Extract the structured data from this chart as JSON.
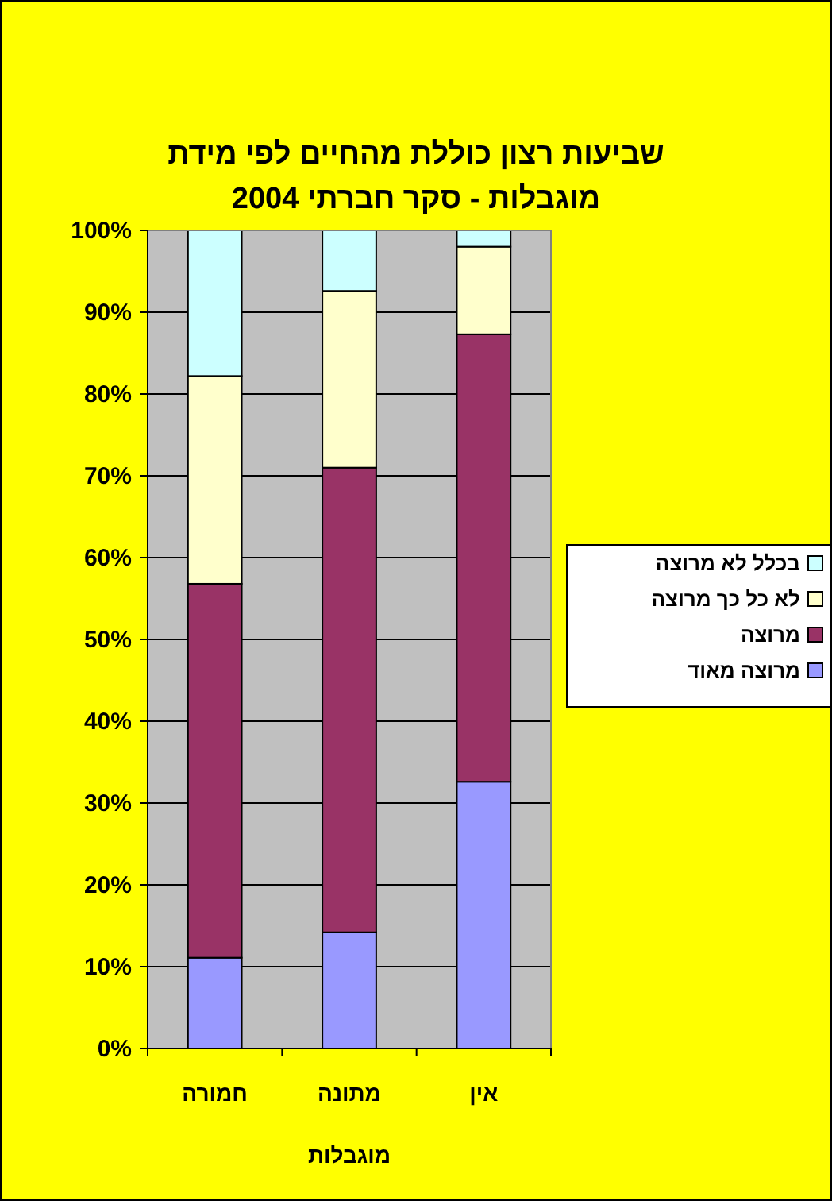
{
  "chart_data": {
    "type": "bar",
    "stacked": true,
    "title": "שביעות רצון כוללת מהחיים לפי מידת מוגבלות - סקר חברתי 2004",
    "xlabel": "מוגבלות",
    "categories": [
      "חמורה",
      "מתונה",
      "אין"
    ],
    "series": [
      {
        "name": "מרוצה מאוד",
        "color": "#9999ff",
        "values": [
          11.1,
          14.2,
          32.6
        ]
      },
      {
        "name": "מרוצה",
        "color": "#993366",
        "values": [
          45.7,
          56.8,
          54.7
        ]
      },
      {
        "name": "לא כל כך מרוצה",
        "color": "#ffffcc",
        "values": [
          25.4,
          21.6,
          10.7
        ]
      },
      {
        "name": "בכלל לא מרוצה",
        "color": "#ccffff",
        "values": [
          17.8,
          7.4,
          2.0
        ]
      }
    ],
    "ylim": [
      0,
      100
    ],
    "yticks": [
      {
        "value": 0,
        "label": "0%"
      },
      {
        "value": 10,
        "label": "10%"
      },
      {
        "value": 20,
        "label": "20%"
      },
      {
        "value": 30,
        "label": "30%"
      },
      {
        "value": 40,
        "label": "40%"
      },
      {
        "value": 50,
        "label": "50%"
      },
      {
        "value": 60,
        "label": "60%"
      },
      {
        "value": 70,
        "label": "70%"
      },
      {
        "value": 80,
        "label": "80%"
      },
      {
        "value": 90,
        "label": "90%"
      },
      {
        "value": 100,
        "label": "100%"
      }
    ],
    "grid": "y",
    "legend": "right"
  }
}
